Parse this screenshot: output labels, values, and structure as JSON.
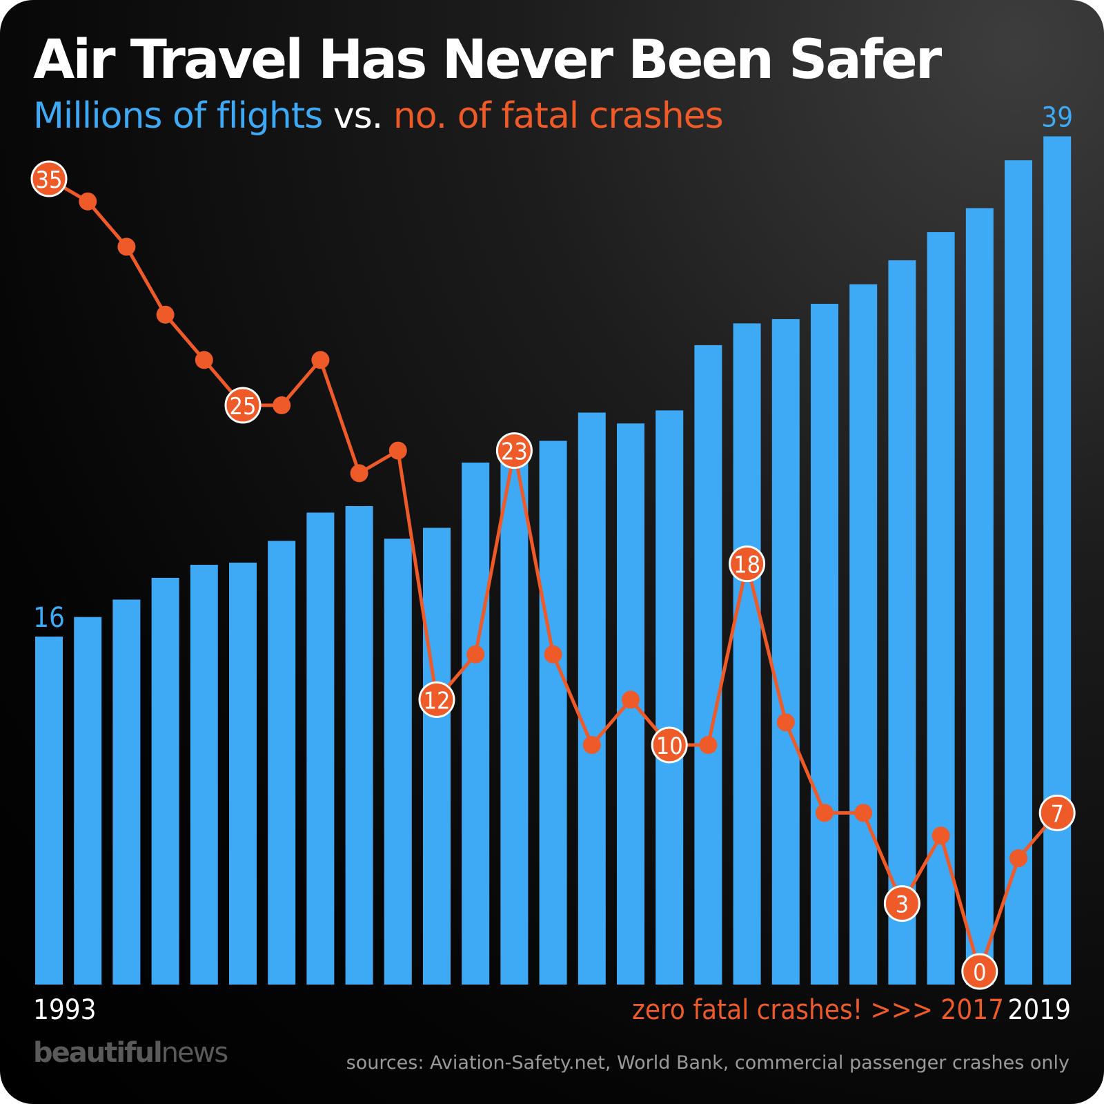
{
  "title": "Air Travel Has Never Been Safer",
  "subtitle": {
    "part1": "Millions of flights",
    "part2": "vs.",
    "part3": "no. of fatal crashes"
  },
  "colors": {
    "bars": "#3ea9f5",
    "line": "#ee5a28",
    "text": "#ffffff",
    "background": "#000000"
  },
  "annotation": "zero fatal crashes! >>> 2017",
  "logo": {
    "bold": "beautiful",
    "light": "news"
  },
  "sources": "sources: Aviation-Safety.net, World Bank, commercial passenger crashes only",
  "chart_data": {
    "type": "bar+line",
    "x": [
      1993,
      1994,
      1995,
      1996,
      1997,
      1998,
      1999,
      2000,
      2001,
      2002,
      2003,
      2004,
      2005,
      2006,
      2007,
      2008,
      2009,
      2010,
      2011,
      2012,
      2013,
      2014,
      2015,
      2016,
      2017,
      2018,
      2019
    ],
    "x_tick_labels": [
      "1993",
      "2019"
    ],
    "series": [
      {
        "name": "Millions of flights",
        "type": "bar",
        "values": [
          16,
          16.9,
          17.7,
          18.7,
          19.3,
          19.4,
          20.4,
          21.7,
          22.0,
          20.5,
          21.0,
          24.0,
          24.0,
          25.0,
          26.3,
          25.8,
          26.4,
          29.4,
          30.4,
          30.6,
          31.3,
          32.2,
          33.3,
          34.6,
          35.7,
          37.9,
          39
        ],
        "labels": {
          "0": "16",
          "26": "39"
        }
      },
      {
        "name": "no. of fatal crashes",
        "type": "line",
        "values": [
          35,
          34,
          32,
          29,
          27,
          25,
          25,
          27,
          22,
          23,
          12,
          14,
          23,
          14,
          10,
          12,
          10,
          10,
          18,
          11,
          7,
          7,
          3,
          6,
          0,
          5,
          7
        ],
        "labels": {
          "0": "35",
          "5": "25",
          "10": "12",
          "12": "23",
          "16": "10",
          "18": "18",
          "22": "3",
          "24": "0",
          "26": "7"
        }
      }
    ],
    "grid": false,
    "legend": "none"
  }
}
